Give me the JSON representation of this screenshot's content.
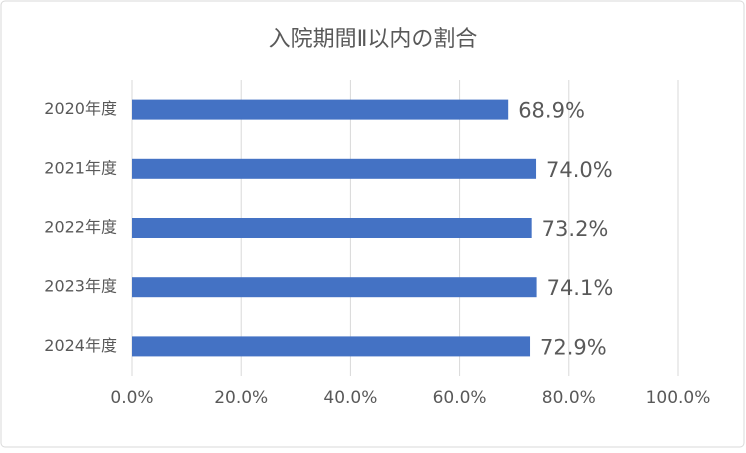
{
  "chart_data": {
    "type": "bar",
    "orientation": "horizontal",
    "title": "入院期間Ⅱ以内の割合",
    "categories": [
      "2020年度",
      "2021年度",
      "2022年度",
      "2023年度",
      "2024年度"
    ],
    "values": [
      68.9,
      74.0,
      73.2,
      74.1,
      72.9
    ],
    "value_labels": [
      "68.9%",
      "74.0%",
      "73.2%",
      "74.1%",
      "72.9%"
    ],
    "color": "#4472c4",
    "xlim": [
      0,
      100
    ],
    "xticks": [
      {
        "value": 0,
        "label": "0.0%"
      },
      {
        "value": 20,
        "label": "20.0%"
      },
      {
        "value": 40,
        "label": "40.0%"
      },
      {
        "value": 60,
        "label": "60.0%"
      },
      {
        "value": 80,
        "label": "80.0%"
      },
      {
        "value": 100,
        "label": "100.0%"
      }
    ],
    "grid": true
  }
}
